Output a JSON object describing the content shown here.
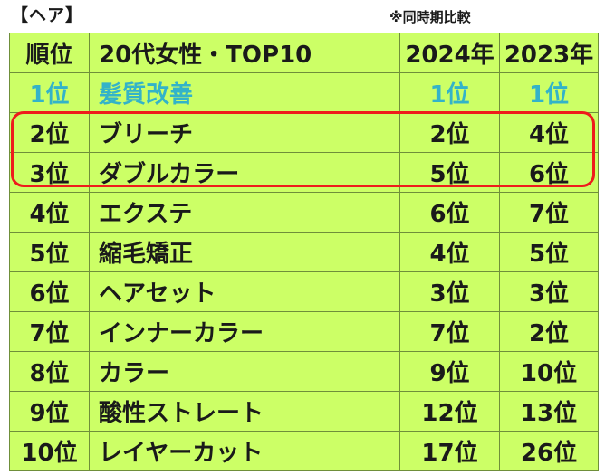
{
  "section_label": "【ヘア】",
  "note": "※同時期比較",
  "header": {
    "rank": "順位",
    "title": "20代女性・TOP10",
    "year_2024": "2024年",
    "year_2023": "2023年"
  },
  "rows": [
    {
      "rank": "1位",
      "item": "髪質改善",
      "y2024": "1位",
      "y2023": "1位"
    },
    {
      "rank": "2位",
      "item": "ブリーチ",
      "y2024": "2位",
      "y2023": "4位"
    },
    {
      "rank": "3位",
      "item": "ダブルカラー",
      "y2024": "5位",
      "y2023": "6位"
    },
    {
      "rank": "4位",
      "item": "エクステ",
      "y2024": "6位",
      "y2023": "7位"
    },
    {
      "rank": "5位",
      "item": "縮毛矯正",
      "y2024": "4位",
      "y2023": "5位"
    },
    {
      "rank": "6位",
      "item": "ヘアセット",
      "y2024": "3位",
      "y2023": "3位"
    },
    {
      "rank": "7位",
      "item": "インナーカラー",
      "y2024": "7位",
      "y2023": "2位"
    },
    {
      "rank": "8位",
      "item": "カラー",
      "y2024": "9位",
      "y2023": "10位"
    },
    {
      "rank": "9位",
      "item": "酸性ストレート",
      "y2024": "12位",
      "y2023": "13位"
    },
    {
      "rank": "10位",
      "item": "レイヤーカット",
      "y2024": "17位",
      "y2023": "26位"
    }
  ],
  "colors": {
    "cell_background": "#ccff66",
    "first_row_text": "#33b3c9",
    "highlight_border": "#ee1c1c"
  }
}
